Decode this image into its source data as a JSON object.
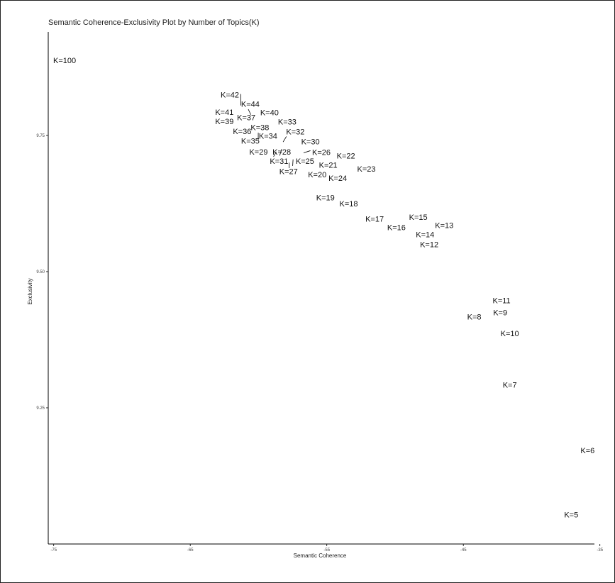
{
  "chart_data": {
    "type": "scatter",
    "title": "Semantic Coherence-Exclusivity Plot by Number of Topics(K)",
    "xlabel": "Semantic Coherence",
    "ylabel": "Exclusivity",
    "xlim": [
      -75.4,
      -35.4
    ],
    "ylim": [
      9.0,
      9.94
    ],
    "xticks": [
      -75,
      -65,
      -55,
      -45,
      -35
    ],
    "yticks": [
      9.25,
      9.5,
      9.75
    ],
    "xtick_labels": [
      "-75",
      "-65",
      "-55",
      "-45",
      "-35"
    ],
    "ytick_labels": [
      "9.25",
      "9.50",
      "9.75"
    ],
    "grid": false,
    "legend": "none",
    "points": [
      {
        "label": "K=100",
        "x": -74.2,
        "y": 9.888
      },
      {
        "label": "K=42",
        "x": -62.1,
        "y": 9.825
      },
      {
        "label": "K=44",
        "x": -60.6,
        "y": 9.808
      },
      {
        "label": "K=41",
        "x": -62.5,
        "y": 9.793
      },
      {
        "label": "K=40",
        "x": -59.2,
        "y": 9.792
      },
      {
        "label": "K=37",
        "x": -60.9,
        "y": 9.783
      },
      {
        "label": "K=39",
        "x": -62.5,
        "y": 9.776
      },
      {
        "label": "K=33",
        "x": -57.9,
        "y": 9.775
      },
      {
        "label": "K=38",
        "x": -59.9,
        "y": 9.765
      },
      {
        "label": "K=36",
        "x": -61.2,
        "y": 9.758
      },
      {
        "label": "K=32",
        "x": -57.3,
        "y": 9.757
      },
      {
        "label": "K=34",
        "x": -59.3,
        "y": 9.749
      },
      {
        "label": "K=35",
        "x": -60.6,
        "y": 9.74
      },
      {
        "label": "K=30",
        "x": -56.2,
        "y": 9.739
      },
      {
        "label": "K=29",
        "x": -60.0,
        "y": 9.72
      },
      {
        "label": "K=28",
        "x": -58.3,
        "y": 9.72
      },
      {
        "label": "K=26",
        "x": -55.4,
        "y": 9.719
      },
      {
        "label": "K=22",
        "x": -53.6,
        "y": 9.713
      },
      {
        "label": "K=31",
        "x": -58.5,
        "y": 9.703
      },
      {
        "label": "K=25",
        "x": -56.6,
        "y": 9.703
      },
      {
        "label": "K=21",
        "x": -54.9,
        "y": 9.696
      },
      {
        "label": "K=23",
        "x": -52.1,
        "y": 9.689
      },
      {
        "label": "K=27",
        "x": -57.8,
        "y": 9.684
      },
      {
        "label": "K=20",
        "x": -55.7,
        "y": 9.678
      },
      {
        "label": "K=24",
        "x": -54.2,
        "y": 9.672
      },
      {
        "label": "K=19",
        "x": -55.1,
        "y": 9.636
      },
      {
        "label": "K=18",
        "x": -53.4,
        "y": 9.625
      },
      {
        "label": "K=15",
        "x": -48.3,
        "y": 9.6
      },
      {
        "label": "K=17",
        "x": -51.5,
        "y": 9.597
      },
      {
        "label": "K=13",
        "x": -46.4,
        "y": 9.585
      },
      {
        "label": "K=16",
        "x": -49.9,
        "y": 9.581
      },
      {
        "label": "K=14",
        "x": -47.8,
        "y": 9.568
      },
      {
        "label": "K=12",
        "x": -47.5,
        "y": 9.55
      },
      {
        "label": "K=11",
        "x": -42.2,
        "y": 9.447
      },
      {
        "label": "K=9",
        "x": -42.3,
        "y": 9.425
      },
      {
        "label": "K=8",
        "x": -44.2,
        "y": 9.417
      },
      {
        "label": "K=10",
        "x": -41.6,
        "y": 9.387
      },
      {
        "label": "K=7",
        "x": -41.6,
        "y": 9.292
      },
      {
        "label": "K=6",
        "x": -35.9,
        "y": 9.172
      },
      {
        "label": "K=5",
        "x": -37.1,
        "y": 9.054
      }
    ],
    "leader_lines": [
      {
        "from": [
          -61.29,
          9.826
        ],
        "to": [
          -61.29,
          9.805
        ]
      },
      {
        "from": [
          -60.75,
          9.798
        ],
        "to": [
          -60.56,
          9.788
        ]
      },
      {
        "from": [
          -60.02,
          9.755
        ],
        "to": [
          -60.02,
          9.742
        ]
      },
      {
        "from": [
          -57.96,
          9.748
        ],
        "to": [
          -58.2,
          9.738
        ]
      },
      {
        "from": [
          -57.47,
          9.706
        ],
        "to": [
          -57.5,
          9.694
        ]
      },
      {
        "from": [
          -56.7,
          9.718
        ],
        "to": [
          -56.2,
          9.722
        ]
      },
      {
        "from": [
          -58.9,
          9.711
        ],
        "to": [
          -58.7,
          9.72
        ]
      },
      {
        "from": [
          -58.3,
          9.725
        ],
        "to": [
          -58.45,
          9.713
        ]
      },
      {
        "from": [
          -57.75,
          9.7
        ],
        "to": [
          -57.75,
          9.69
        ]
      }
    ]
  }
}
